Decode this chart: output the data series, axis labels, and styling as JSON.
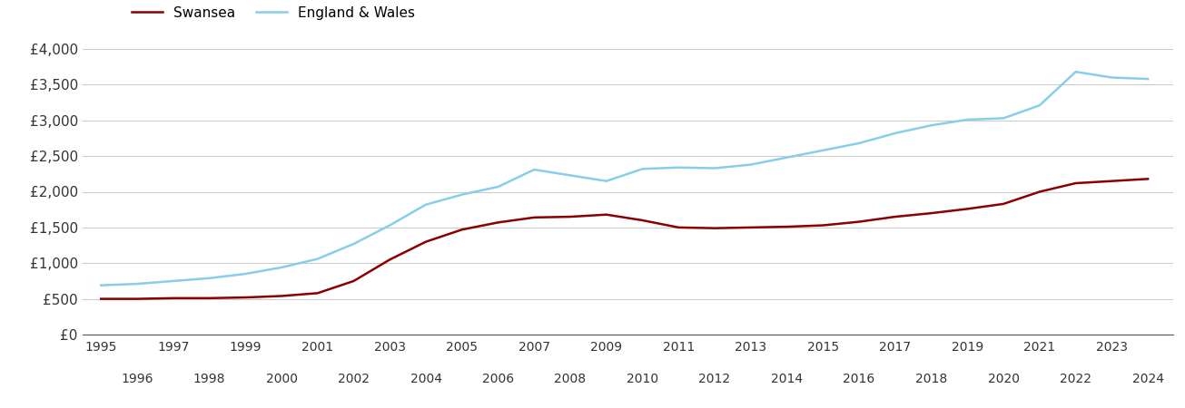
{
  "swansea_years": [
    1995,
    1996,
    1997,
    1998,
    1999,
    2000,
    2001,
    2002,
    2003,
    2004,
    2005,
    2006,
    2007,
    2008,
    2009,
    2010,
    2011,
    2012,
    2013,
    2014,
    2015,
    2016,
    2017,
    2018,
    2019,
    2020,
    2021,
    2022,
    2023,
    2024
  ],
  "swansea_values": [
    500,
    500,
    510,
    510,
    520,
    540,
    580,
    750,
    1050,
    1300,
    1470,
    1570,
    1640,
    1650,
    1680,
    1600,
    1500,
    1490,
    1500,
    1510,
    1530,
    1580,
    1650,
    1700,
    1760,
    1830,
    2000,
    2120,
    2150,
    2180
  ],
  "england_wales_years": [
    1995,
    1996,
    1997,
    1998,
    1999,
    2000,
    2001,
    2002,
    2003,
    2004,
    2005,
    2006,
    2007,
    2008,
    2009,
    2010,
    2011,
    2012,
    2013,
    2014,
    2015,
    2016,
    2017,
    2018,
    2019,
    2020,
    2021,
    2022,
    2023,
    2024
  ],
  "england_wales_values": [
    690,
    710,
    750,
    790,
    850,
    940,
    1060,
    1270,
    1530,
    1820,
    1960,
    2070,
    2310,
    2230,
    2150,
    2320,
    2340,
    2330,
    2380,
    2480,
    2580,
    2680,
    2820,
    2930,
    3010,
    3030,
    3210,
    3680,
    3600,
    3580
  ],
  "swansea_color": "#8b0000",
  "england_wales_color": "#87CEEB",
  "ylim": [
    0,
    4000
  ],
  "ytick_values": [
    0,
    500,
    1000,
    1500,
    2000,
    2500,
    3000,
    3500,
    4000
  ],
  "ytick_labels": [
    "£0",
    "£500",
    "£1,000",
    "£1,500",
    "£2,000",
    "£2,500",
    "£3,000",
    "£3,500",
    "£4,000"
  ],
  "odd_years": [
    1995,
    1997,
    1999,
    2001,
    2003,
    2005,
    2007,
    2009,
    2011,
    2013,
    2015,
    2017,
    2019,
    2021,
    2023
  ],
  "even_years": [
    1996,
    1998,
    2000,
    2002,
    2004,
    2006,
    2008,
    2010,
    2012,
    2014,
    2016,
    2018,
    2020,
    2022,
    2024
  ],
  "line_width": 1.8,
  "legend_swansea": "Swansea",
  "legend_england_wales": "England & Wales",
  "grid_color": "#cccccc",
  "background_color": "#ffffff",
  "xlim": [
    1994.5,
    2024.7
  ]
}
